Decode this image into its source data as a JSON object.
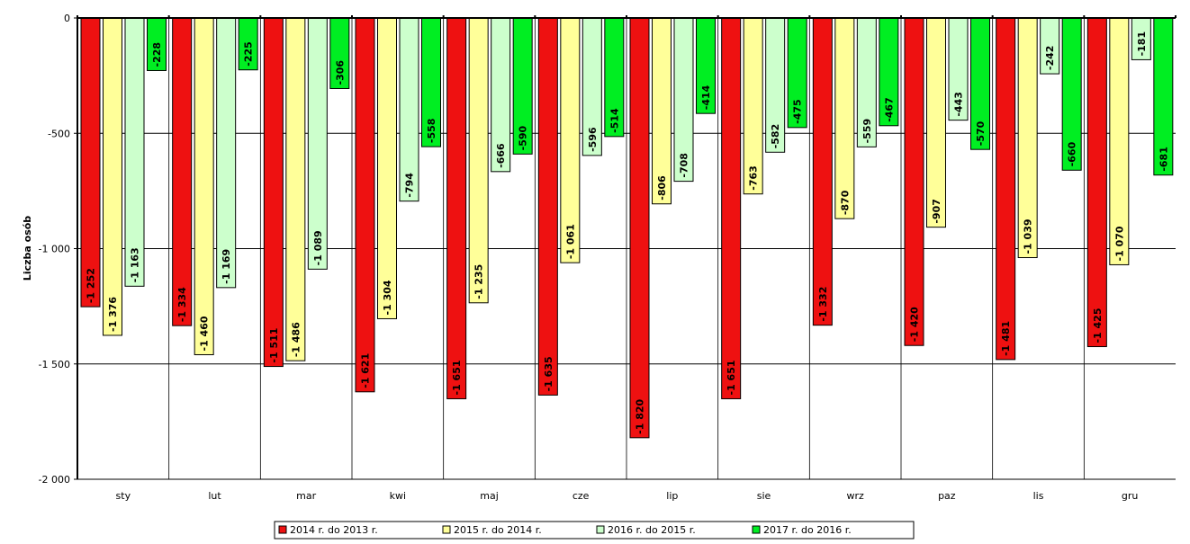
{
  "chart_data": {
    "type": "bar",
    "title": "",
    "xlabel": "",
    "ylabel": "Liczba osób",
    "ylim": [
      -2000,
      0
    ],
    "yticks": [
      0,
      -500,
      -1000,
      -1500,
      -2000
    ],
    "ytick_labels": [
      "0",
      "-500",
      "-1 000",
      "-1 500",
      "-2 000"
    ],
    "grid": true,
    "legend_position": "bottom",
    "categories": [
      "sty",
      "lut",
      "mar",
      "kwi",
      "maj",
      "cze",
      "lip",
      "sie",
      "wrz",
      "paz",
      "lis",
      "gru"
    ],
    "series": [
      {
        "name": "2014 r. do 2013 r.",
        "color": "#ee1111",
        "values": [
          -1252,
          -1334,
          -1511,
          -1621,
          -1651,
          -1635,
          -1820,
          -1651,
          -1332,
          -1420,
          -1481,
          -1425
        ],
        "labels": [
          "-1 252",
          "-1 334",
          "-1 511",
          "-1 621",
          "-1 651",
          "-1 635",
          "-1 820",
          "-1 651",
          "-1 332",
          "-1 420",
          "-1 481",
          "-1 425"
        ]
      },
      {
        "name": "2015 r. do 2014 r.",
        "color": "#ffff99",
        "values": [
          -1376,
          -1460,
          -1486,
          -1304,
          -1235,
          -1061,
          -806,
          -763,
          -870,
          -907,
          -1039,
          -1070
        ],
        "labels": [
          "-1 376",
          "-1 460",
          "-1 486",
          "-1 304",
          "-1 235",
          "-1 061",
          "-806",
          "-763",
          "-870",
          "-907",
          "-1 039",
          "-1 070"
        ]
      },
      {
        "name": "2016 r. do 2015 r.",
        "color": "#ccffcc",
        "values": [
          -1163,
          -1169,
          -1089,
          -794,
          -666,
          -596,
          -708,
          -582,
          -559,
          -443,
          -242,
          -181
        ],
        "labels": [
          "-1 163",
          "-1 169",
          "-1 089",
          "-794",
          "-666",
          "-596",
          "-708",
          "-582",
          "-559",
          "-443",
          "-242",
          "-181"
        ]
      },
      {
        "name": "2017 r. do 2016 r.",
        "color": "#00ee22",
        "values": [
          -228,
          -225,
          -306,
          -558,
          -590,
          -514,
          -414,
          -475,
          -467,
          -570,
          -660,
          -681
        ],
        "labels": [
          "-228",
          "-225",
          "-306",
          "-558",
          "-590",
          "-514",
          "-414",
          "-475",
          "-467",
          "-570",
          "-660",
          "-681"
        ]
      }
    ]
  }
}
